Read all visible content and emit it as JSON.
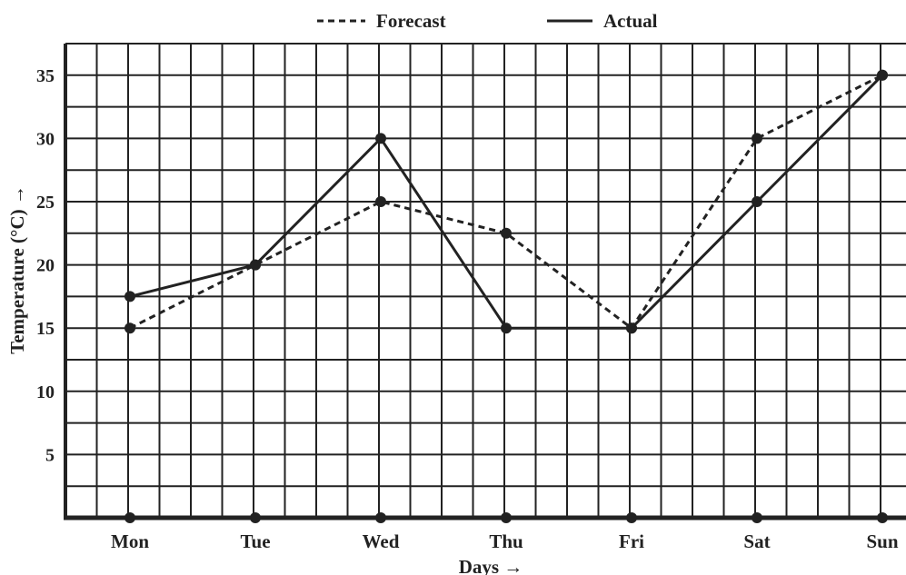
{
  "chart_data": {
    "type": "line",
    "title": "",
    "xlabel": "Days →",
    "ylabel": "Temperature (°C) →",
    "categories": [
      "Mon",
      "Tue",
      "Wed",
      "Thu",
      "Fri",
      "Sat",
      "Sun"
    ],
    "ylim": [
      0,
      37.5
    ],
    "yticks": [
      5,
      10,
      15,
      20,
      25,
      30,
      35
    ],
    "grid": true,
    "legend_position": "top-center",
    "series": [
      {
        "name": "Forecast",
        "style": "dashed",
        "values": [
          15,
          20,
          25,
          22.5,
          15,
          30,
          35
        ]
      },
      {
        "name": "Actual",
        "style": "solid",
        "values": [
          17.5,
          20,
          30,
          15,
          15,
          25,
          35
        ]
      }
    ],
    "colors": {
      "line": "#222222",
      "grid": "#222222",
      "background": "#ffffff"
    }
  }
}
